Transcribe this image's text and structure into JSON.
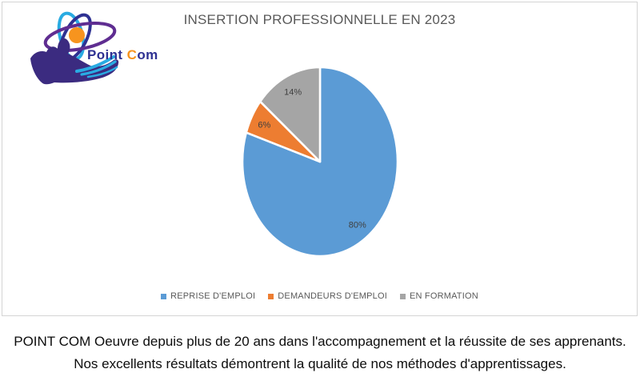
{
  "logo": {
    "brand_first": "Point",
    "brand_c": "C",
    "brand_rest": "om",
    "colors": {
      "navy": "#2E3192",
      "purple": "#5F2D91",
      "cyan": "#29ABE2",
      "orange": "#F7941E",
      "hand": "#3B2B80"
    }
  },
  "chart_data": {
    "type": "pie",
    "title": "INSERTION PROFESSIONNELLE EN 2023",
    "direction": "clockwise",
    "start_angle_deg": 0,
    "legend_position": "bottom",
    "slices": [
      {
        "label": "REPRISE D'EMPLOI",
        "value": 80,
        "data_label": "80%",
        "color": "#5B9BD5"
      },
      {
        "label": "DEMANDEURS D'EMPLOI",
        "value": 6,
        "data_label": "6%",
        "color": "#ED7D31"
      },
      {
        "label": "EN FORMATION",
        "value": 14,
        "data_label": "14%",
        "color": "#A5A5A5"
      }
    ]
  },
  "theme": {
    "title_color": "#595959",
    "legend_text_color": "#595959",
    "data_label_color": "#404040",
    "panel_border": "#D4D4D4",
    "background": "#FFFFFF",
    "slice_separator": "#FFFFFF"
  },
  "caption": {
    "line1": "POINT COM Oeuvre depuis plus de 20 ans dans l'accompagnement et la réussite de ses apprenants.",
    "line2": "Nos excellents résultats démontrent la qualité de nos méthodes d'apprentissages."
  }
}
